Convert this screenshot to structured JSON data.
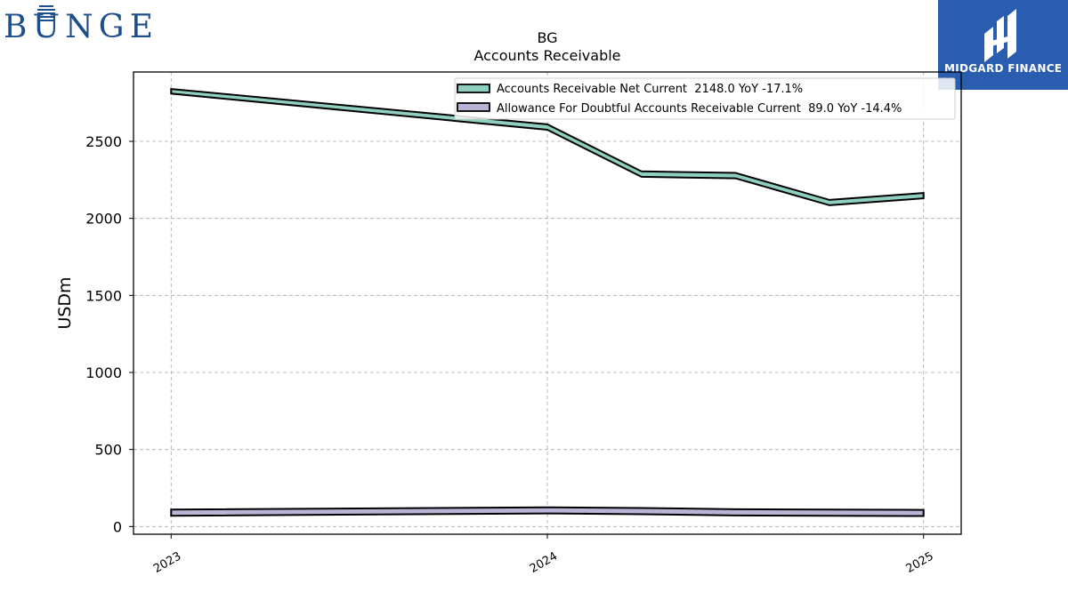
{
  "logos": {
    "left_text": "BUNGE",
    "left_color": "#1f4e8c",
    "right_text": "MIDGARD FINANCE",
    "right_bg": "#2a5db0"
  },
  "chart_data": {
    "type": "area",
    "title": "BG",
    "subtitle": "Accounts Receivable",
    "xlabel": "",
    "ylabel": "USDm",
    "ylim": [
      -50,
      2950
    ],
    "yticks": [
      0,
      500,
      1000,
      1500,
      2000,
      2500
    ],
    "xticks": [
      {
        "label": "2023",
        "x": 2023.0
      },
      {
        "label": "2024",
        "x": 2024.0
      },
      {
        "label": "2025",
        "x": 2025.0
      }
    ],
    "xlim": [
      2022.9,
      2025.1
    ],
    "grid": true,
    "legend_position": "top-right",
    "series": [
      {
        "name": "Accounts Receivable Net Current  2148.0 YoY -17.1%",
        "color": "#8ecfc0",
        "x": [
          2023.0,
          2024.0,
          2024.25,
          2024.5,
          2024.75,
          2025.0
        ],
        "upper": [
          2840,
          2610,
          2305,
          2295,
          2120,
          2165
        ],
        "lower": [
          2810,
          2575,
          2270,
          2260,
          2085,
          2130
        ]
      },
      {
        "name": "Allowance For Doubtful Accounts Receivable Current  89.0 YoY -14.4%",
        "color": "#b8b4d6",
        "x": [
          2023.0,
          2024.0,
          2024.25,
          2024.5,
          2024.75,
          2025.0
        ],
        "upper": [
          110,
          125,
          120,
          112,
          110,
          108
        ],
        "lower": [
          70,
          85,
          80,
          72,
          70,
          68
        ]
      }
    ]
  }
}
